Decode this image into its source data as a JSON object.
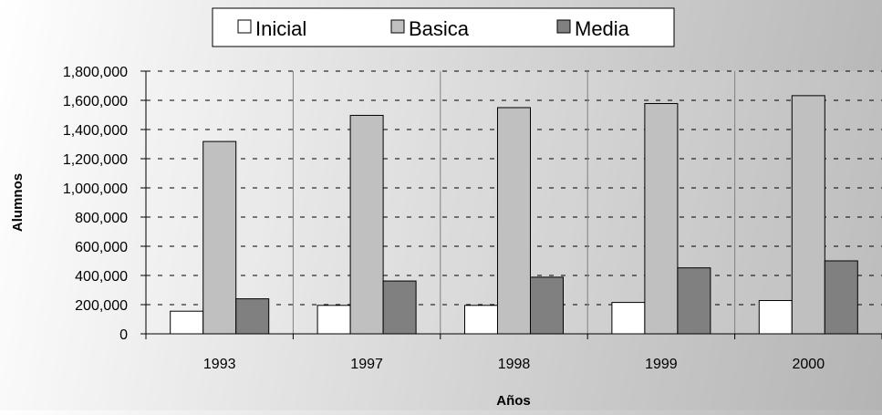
{
  "chart_data": {
    "type": "bar",
    "title": "",
    "xlabel": "Años",
    "ylabel": "Alumnos",
    "categories": [
      "1993",
      "1997",
      "1998",
      "1999",
      "2000"
    ],
    "series": [
      {
        "name": "Inicial",
        "color": "#ffffff",
        "values": [
          155000,
          195000,
          195000,
          215000,
          228000
        ]
      },
      {
        "name": "Basica",
        "color": "#c0c0c0",
        "values": [
          1318000,
          1497000,
          1550000,
          1578000,
          1632000
        ]
      },
      {
        "name": "Media",
        "color": "#808080",
        "values": [
          240000,
          362000,
          388000,
          452000,
          500000
        ]
      }
    ],
    "ylim": [
      0,
      1800000
    ],
    "yticks": [
      0,
      200000,
      400000,
      600000,
      800000,
      1000000,
      1200000,
      1400000,
      1600000,
      1800000
    ],
    "ytick_labels": [
      "0",
      "200,000",
      "400,000",
      "600,000",
      "800,000",
      "1,000,000",
      "1,200,000",
      "1,400,000",
      "1,600,000",
      "1,800,000"
    ],
    "grid": "dashed horizontal gridlines with vertical separators between categories",
    "legend_position": "top"
  }
}
